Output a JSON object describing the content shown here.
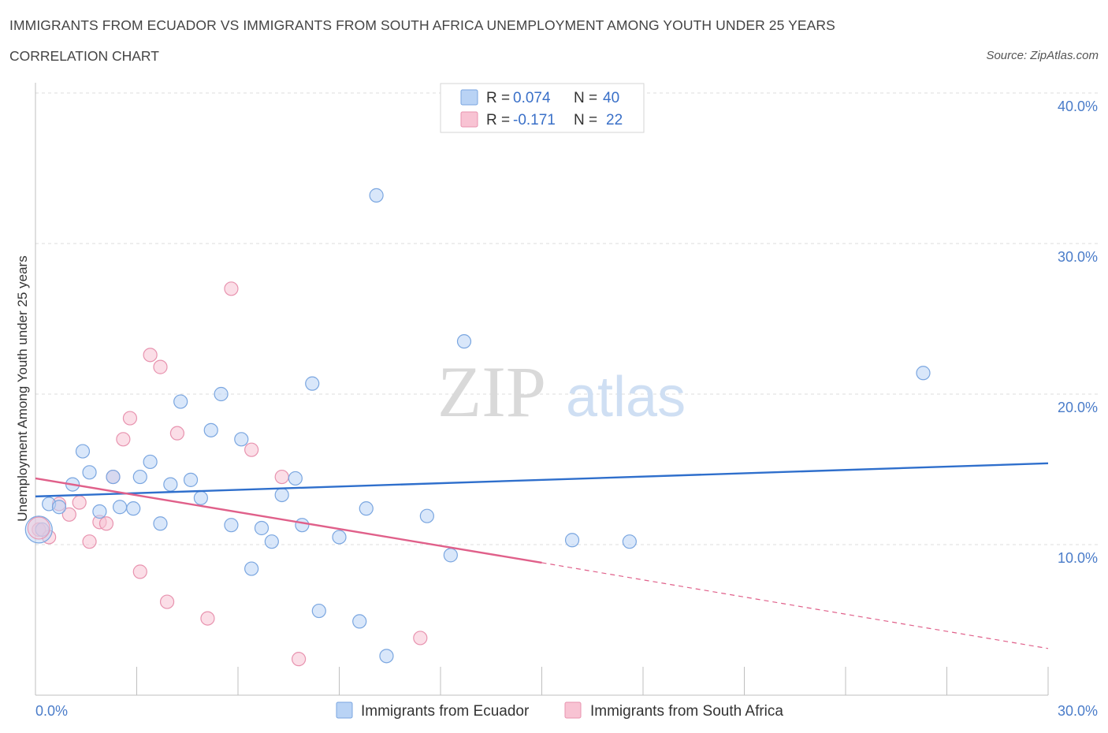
{
  "header": {
    "title": "IMMIGRANTS FROM ECUADOR VS IMMIGRANTS FROM SOUTH AFRICA UNEMPLOYMENT AMONG YOUTH UNDER 25 YEARS",
    "subtitle": "CORRELATION CHART",
    "source": "Source: ZipAtlas.com"
  },
  "watermark": {
    "zip": "ZIP",
    "atlas": "atlas"
  },
  "legend": {
    "r_label": "R =",
    "n_label": "N =",
    "rows": [
      {
        "r": "0.074",
        "n": "40"
      },
      {
        "r": "-0.171",
        "n": "22"
      }
    ]
  },
  "colors": {
    "ecuador_fill": "#b9d3f5",
    "ecuador_stroke": "#7aa6e0",
    "ecuador_line": "#2f6fcc",
    "southafrica_fill": "#f8c3d3",
    "southafrica_stroke": "#e893af",
    "southafrica_line": "#e0608a",
    "grid": "#dcdcdc",
    "tick_text": "#4a7cc9"
  },
  "chart_data": {
    "type": "scatter",
    "title": "IMMIGRANTS FROM ECUADOR VS IMMIGRANTS FROM SOUTH AFRICA UNEMPLOYMENT AMONG YOUTH UNDER 25 YEARS",
    "xlabel": "",
    "ylabel": "Unemployment Among Youth under 25 years",
    "xlim": [
      0,
      30
    ],
    "ylim": [
      0,
      40
    ],
    "x_tick_labels": [
      "0.0%",
      "30.0%"
    ],
    "y_ticks": [
      10,
      20,
      30,
      40
    ],
    "y_tick_labels": [
      "10.0%",
      "20.0%",
      "30.0%",
      "40.0%"
    ],
    "grid": true,
    "legend_position": "top-center",
    "series": [
      {
        "name": "Immigrants from Ecuador",
        "points": [
          [
            0.2,
            11.0
          ],
          [
            0.4,
            12.7
          ],
          [
            0.7,
            12.5
          ],
          [
            1.1,
            14.0
          ],
          [
            1.4,
            16.2
          ],
          [
            1.6,
            14.8
          ],
          [
            1.9,
            12.2
          ],
          [
            2.3,
            14.5
          ],
          [
            2.5,
            12.5
          ],
          [
            2.9,
            12.4
          ],
          [
            3.1,
            14.5
          ],
          [
            3.4,
            15.5
          ],
          [
            3.7,
            11.4
          ],
          [
            4.0,
            14.0
          ],
          [
            4.3,
            19.5
          ],
          [
            4.6,
            14.3
          ],
          [
            4.9,
            13.1
          ],
          [
            5.2,
            17.6
          ],
          [
            5.5,
            20.0
          ],
          [
            5.8,
            11.3
          ],
          [
            6.1,
            17.0
          ],
          [
            6.4,
            8.4
          ],
          [
            6.7,
            11.1
          ],
          [
            7.0,
            10.2
          ],
          [
            7.3,
            13.3
          ],
          [
            7.7,
            14.4
          ],
          [
            7.9,
            11.3
          ],
          [
            8.2,
            20.7
          ],
          [
            8.4,
            5.6
          ],
          [
            9.0,
            10.5
          ],
          [
            9.6,
            4.9
          ],
          [
            9.8,
            12.4
          ],
          [
            10.1,
            33.2
          ],
          [
            10.4,
            2.6
          ],
          [
            11.6,
            11.9
          ],
          [
            12.3,
            9.3
          ],
          [
            12.7,
            23.5
          ],
          [
            15.9,
            10.3
          ],
          [
            17.6,
            10.2
          ],
          [
            26.3,
            21.4
          ]
        ],
        "trend": {
          "x": [
            0,
            30
          ],
          "y": [
            13.2,
            15.4
          ]
        }
      },
      {
        "name": "Immigrants from South Africa",
        "points": [
          [
            0.1,
            11.0
          ],
          [
            0.4,
            10.5
          ],
          [
            0.7,
            12.7
          ],
          [
            1.0,
            12.0
          ],
          [
            1.3,
            12.8
          ],
          [
            1.6,
            10.2
          ],
          [
            1.9,
            11.5
          ],
          [
            2.1,
            11.4
          ],
          [
            2.3,
            14.5
          ],
          [
            2.6,
            17.0
          ],
          [
            2.8,
            18.4
          ],
          [
            3.1,
            8.2
          ],
          [
            3.4,
            22.6
          ],
          [
            3.7,
            21.8
          ],
          [
            3.9,
            6.2
          ],
          [
            4.2,
            17.4
          ],
          [
            5.1,
            5.1
          ],
          [
            5.8,
            27.0
          ],
          [
            6.4,
            16.3
          ],
          [
            7.3,
            14.5
          ],
          [
            7.8,
            2.4
          ],
          [
            11.4,
            3.8
          ]
        ],
        "trend": {
          "x": [
            0,
            15
          ],
          "y": [
            14.4,
            8.8
          ]
        },
        "trend_extension": {
          "x": [
            15,
            30
          ],
          "y": [
            8.8,
            3.1
          ]
        }
      }
    ]
  },
  "bottom_legend": [
    {
      "label": "Immigrants from Ecuador"
    },
    {
      "label": "Immigrants from South Africa"
    }
  ]
}
